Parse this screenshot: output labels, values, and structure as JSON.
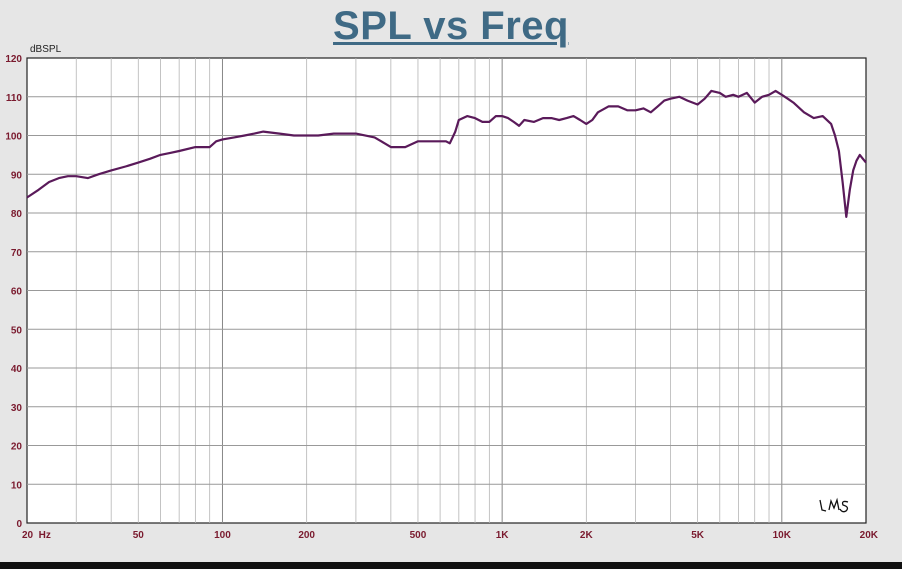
{
  "chart_data": {
    "type": "line",
    "title": "SPL vs Freq",
    "ylabel": "dBSPL",
    "xlabel": "",
    "x_scale": "log",
    "xlim": [
      20,
      20000
    ],
    "ylim": [
      0,
      120
    ],
    "grid": true,
    "x_tick_labels": [
      {
        "label": "20  Hz",
        "value": 20
      },
      {
        "label": "50",
        "value": 50
      },
      {
        "label": "100",
        "value": 100
      },
      {
        "label": "200",
        "value": 200
      },
      {
        "label": "500",
        "value": 500
      },
      {
        "label": "1K",
        "value": 1000
      },
      {
        "label": "2K",
        "value": 2000
      },
      {
        "label": "5K",
        "value": 5000
      },
      {
        "label": "10K",
        "value": 10000
      },
      {
        "label": "20K",
        "value": 20000
      }
    ],
    "y_ticks": [
      0,
      10,
      20,
      30,
      40,
      50,
      60,
      70,
      80,
      90,
      100,
      110,
      120
    ],
    "series": [
      {
        "color": "#5a1a5a",
        "x": [
          20,
          22,
          24,
          26,
          28,
          30,
          33,
          36,
          40,
          45,
          50,
          55,
          60,
          65,
          70,
          80,
          90,
          95,
          100,
          110,
          120,
          130,
          140,
          160,
          180,
          200,
          220,
          250,
          280,
          300,
          350,
          380,
          400,
          450,
          500,
          550,
          600,
          630,
          650,
          680,
          700,
          750,
          800,
          850,
          900,
          950,
          1000,
          1050,
          1100,
          1150,
          1200,
          1300,
          1400,
          1500,
          1600,
          1700,
          1800,
          1900,
          2000,
          2100,
          2200,
          2400,
          2600,
          2800,
          3000,
          3200,
          3400,
          3600,
          3800,
          4000,
          4300,
          4600,
          5000,
          5300,
          5600,
          6000,
          6300,
          6700,
          7000,
          7500,
          8000,
          8500,
          9000,
          9500,
          10000,
          10500,
          11000,
          12000,
          13000,
          14000,
          15000,
          15500,
          16000,
          16500,
          17000,
          17500,
          18000,
          18500,
          19000,
          19500,
          20000
        ],
        "y": [
          84,
          86,
          88,
          89,
          89.5,
          89.5,
          89,
          90,
          91,
          92,
          93,
          94,
          95,
          95.5,
          96,
          97,
          97,
          98.5,
          99,
          99.5,
          100,
          100.5,
          101,
          100.5,
          100,
          100,
          100,
          100.5,
          100.5,
          100.5,
          99.5,
          98,
          97,
          97,
          98.5,
          98.5,
          98.5,
          98.5,
          98,
          101,
          104,
          105,
          104.5,
          103.5,
          103.5,
          105,
          105,
          104.5,
          103.5,
          102.5,
          104,
          103.5,
          104.5,
          104.5,
          104,
          104.5,
          105,
          104,
          103,
          104,
          106,
          107.5,
          107.5,
          106.5,
          106.5,
          107,
          106,
          107.5,
          109,
          109.5,
          110,
          109,
          108,
          109.5,
          111.5,
          111,
          110,
          110.5,
          110,
          111,
          108.5,
          110,
          110.5,
          111.5,
          110.5,
          109.5,
          108.5,
          106,
          104.5,
          105,
          103,
          100,
          96,
          88,
          79,
          86,
          91,
          93.5,
          95,
          94,
          93
        ]
      }
    ],
    "watermark": "LMS"
  }
}
